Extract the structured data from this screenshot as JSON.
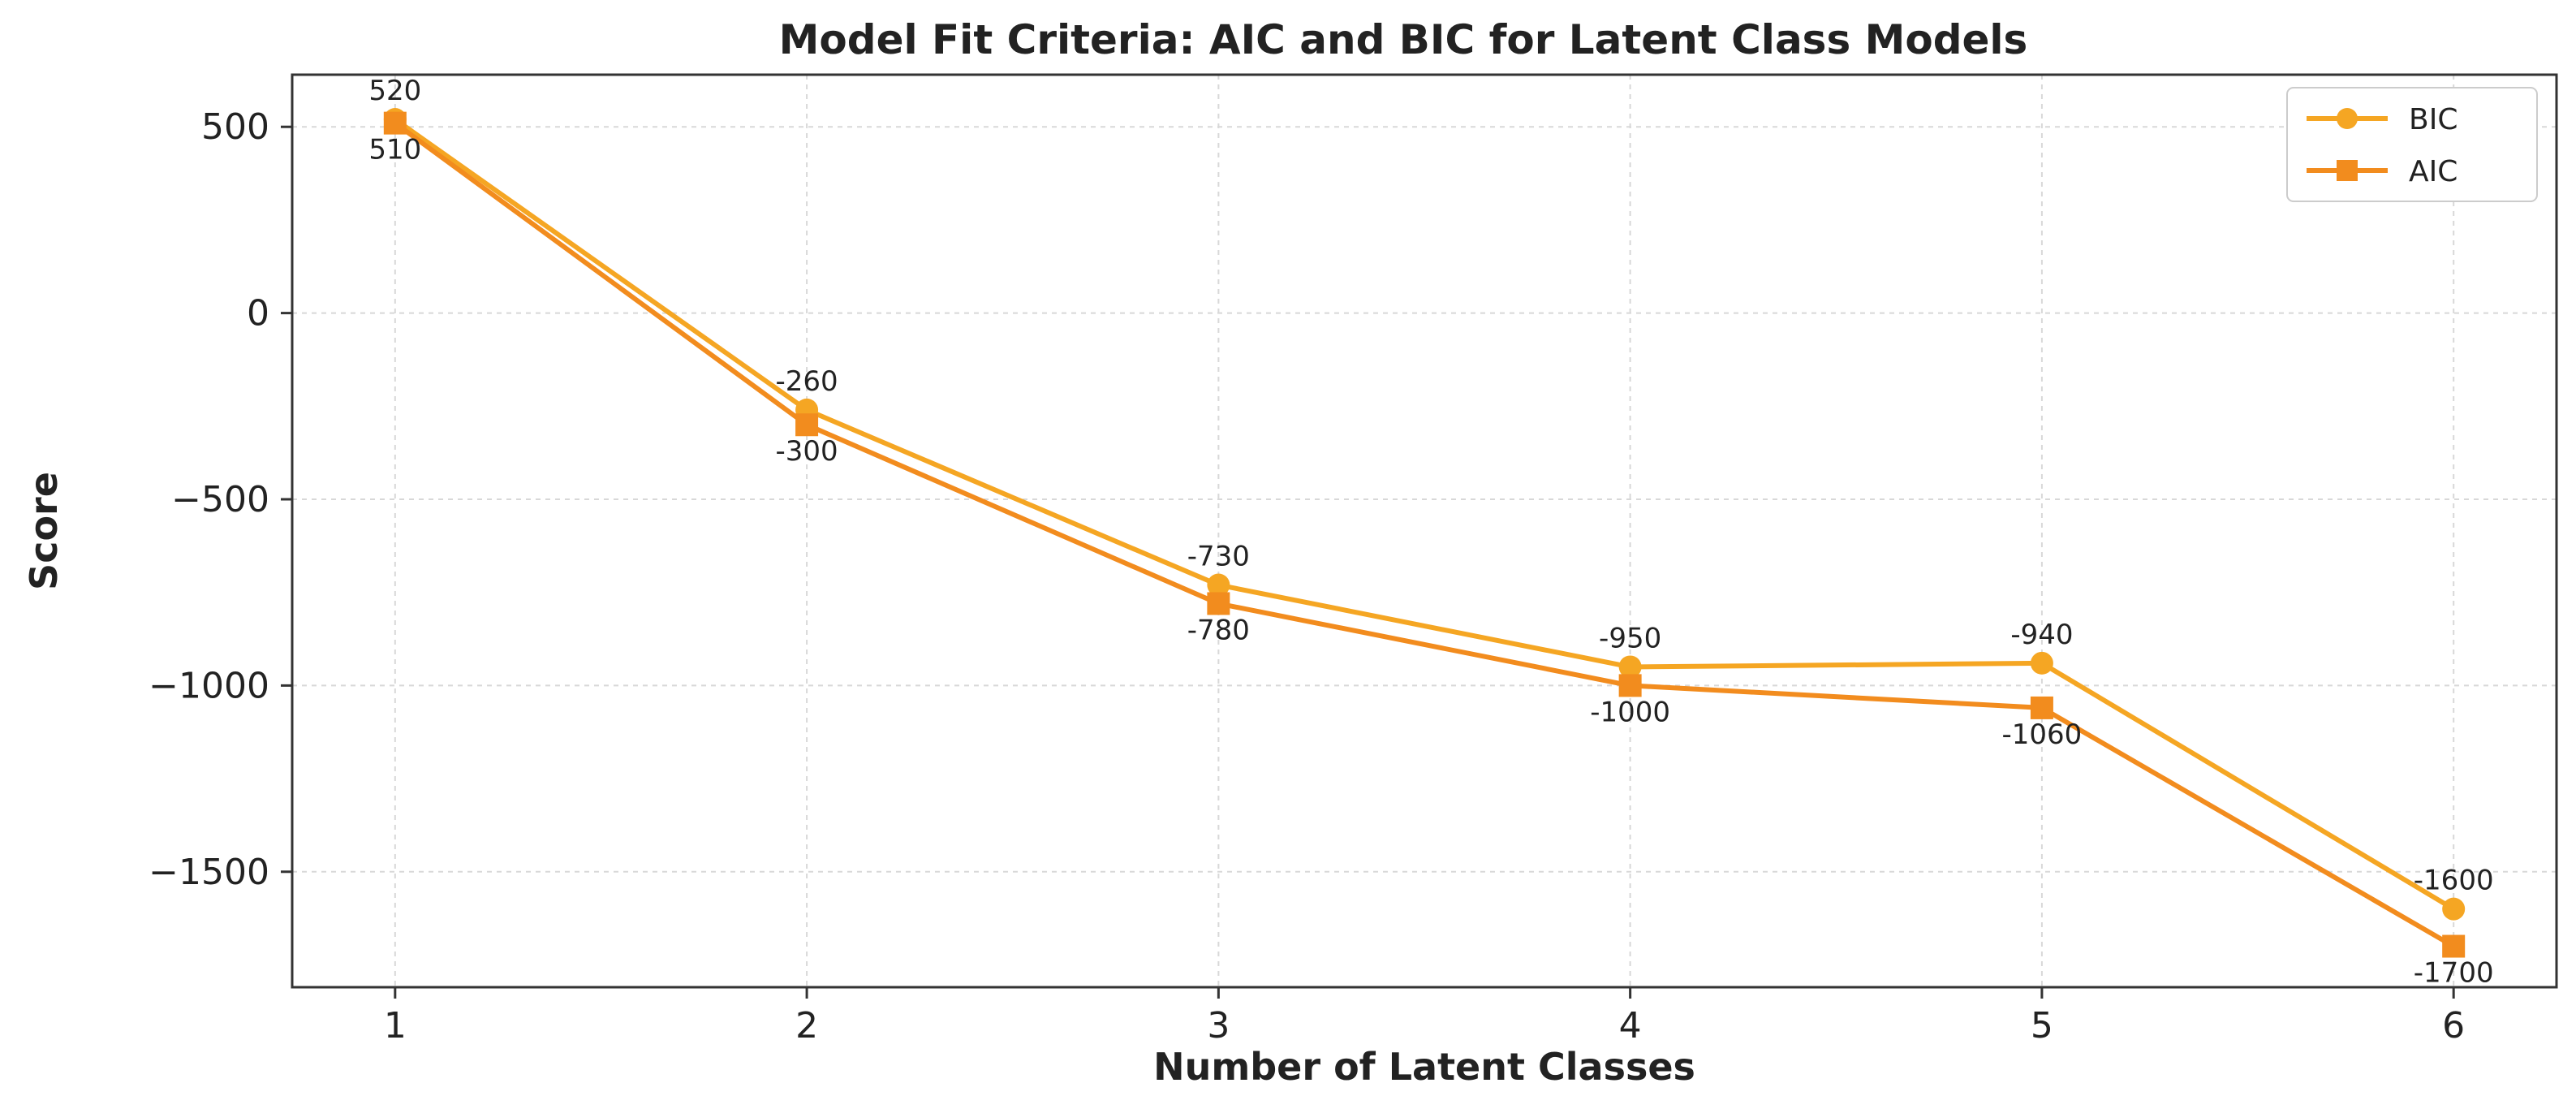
{
  "chart_data": {
    "type": "line",
    "title": "Model Fit Criteria: AIC and BIC for Latent Class Models",
    "xlabel": "Number of Latent Classes",
    "ylabel": "Score",
    "x": [
      1,
      2,
      3,
      4,
      5,
      6
    ],
    "x_ticks": [
      "1",
      "2",
      "3",
      "4",
      "5",
      "6"
    ],
    "y_ticks": [
      500,
      0,
      -500,
      -1000,
      -1500
    ],
    "y_tick_labels": [
      "500",
      "0",
      "−500",
      "−1000",
      "−1500"
    ],
    "xlim": [
      0.75,
      6.25
    ],
    "ylim": [
      -1810,
      640
    ],
    "grid": true,
    "legend_position": "top-right",
    "series": [
      {
        "name": "BIC",
        "values": [
          520,
          -260,
          -730,
          -950,
          -940,
          -1600
        ],
        "labels": [
          "520",
          "-260",
          "-730",
          "-950",
          "-940",
          "-1600"
        ],
        "color": "#F5A623",
        "marker": "circle"
      },
      {
        "name": "AIC",
        "values": [
          510,
          -300,
          -780,
          -1000,
          -1060,
          -1700
        ],
        "labels": [
          "510",
          "-300",
          "-780",
          "-1000",
          "-1060",
          "-1700"
        ],
        "color": "#F28C1E",
        "marker": "square"
      }
    ]
  }
}
